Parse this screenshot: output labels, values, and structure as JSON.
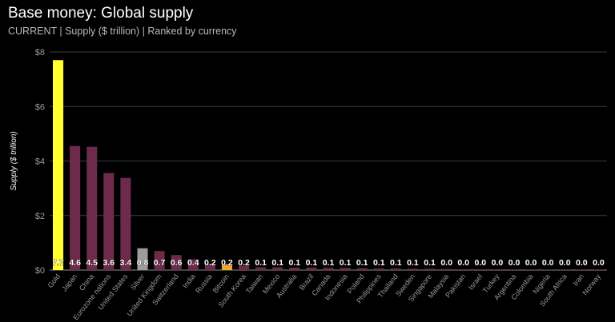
{
  "header": {
    "title": "Base money: Global supply",
    "subtitle": "CURRENT | Supply ($ trillion) | Ranked by currency"
  },
  "chart_data": {
    "type": "bar",
    "title": "Base money: Global supply",
    "subtitle": "CURRENT | Supply ($ trillion) | Ranked by currency",
    "xlabel": "",
    "ylabel": "Supply ($ trillion)",
    "ylim": [
      0,
      8
    ],
    "yticks": [
      0,
      2,
      4,
      6,
      8
    ],
    "ytick_labels": [
      "$0",
      "$2",
      "$4",
      "$6",
      "$8"
    ],
    "grid": true,
    "categories": [
      "Gold",
      "Japan",
      "China",
      "Eurozone nations",
      "United States",
      "Silver",
      "United Kingdom",
      "Switzerland",
      "India",
      "Russia",
      "Bitcoin",
      "South Korea",
      "Taiwan",
      "Mexico",
      "Australia",
      "Brazil",
      "Canada",
      "Indonesia",
      "Poland",
      "Philippines",
      "Thailand",
      "Sweden",
      "Singapore",
      "Malaysia",
      "Pakistan",
      "Israel",
      "Turkey",
      "Argentina",
      "Colombia",
      "Nigeria",
      "South Africa",
      "Iran",
      "Norway"
    ],
    "values": [
      7.7,
      4.55,
      4.52,
      3.56,
      3.38,
      0.8,
      0.7,
      0.55,
      0.4,
      0.22,
      0.2,
      0.16,
      0.1,
      0.1,
      0.09,
      0.09,
      0.08,
      0.08,
      0.07,
      0.06,
      0.06,
      0.05,
      0.05,
      0.04,
      0.03,
      0.03,
      0.03,
      0.02,
      0.02,
      0.02,
      0.02,
      0.01,
      0.01
    ],
    "value_labels": [
      "7.7",
      "4.6",
      "4.5",
      "3.6",
      "3.4",
      "0.8",
      "0.7",
      "0.6",
      "0.4",
      "0.2",
      "0.2",
      "0.2",
      "0.1",
      "0.1",
      "0.1",
      "0.1",
      "0.1",
      "0.1",
      "0.1",
      "0.1",
      "0.1",
      "0.1",
      "0.1",
      "0.0",
      "0.0",
      "0.0",
      "0.0",
      "0.0",
      "0.0",
      "0.0",
      "0.0",
      "0.0",
      "0.0"
    ],
    "colors": [
      "#ffff33",
      "#6e2a4b",
      "#6e2a4b",
      "#6e2a4b",
      "#6e2a4b",
      "#9c9c9c",
      "#6e2a4b",
      "#6e2a4b",
      "#6e2a4b",
      "#6e2a4b",
      "#f5a623",
      "#6e2a4b",
      "#6e2a4b",
      "#6e2a4b",
      "#6e2a4b",
      "#6e2a4b",
      "#6e2a4b",
      "#6e2a4b",
      "#6e2a4b",
      "#6e2a4b",
      "#6e2a4b",
      "#6e2a4b",
      "#6e2a4b",
      "#6e2a4b",
      "#6e2a4b",
      "#6e2a4b",
      "#6e2a4b",
      "#6e2a4b",
      "#6e2a4b",
      "#6e2a4b",
      "#6e2a4b",
      "#6e2a4b",
      "#6e2a4b"
    ]
  }
}
